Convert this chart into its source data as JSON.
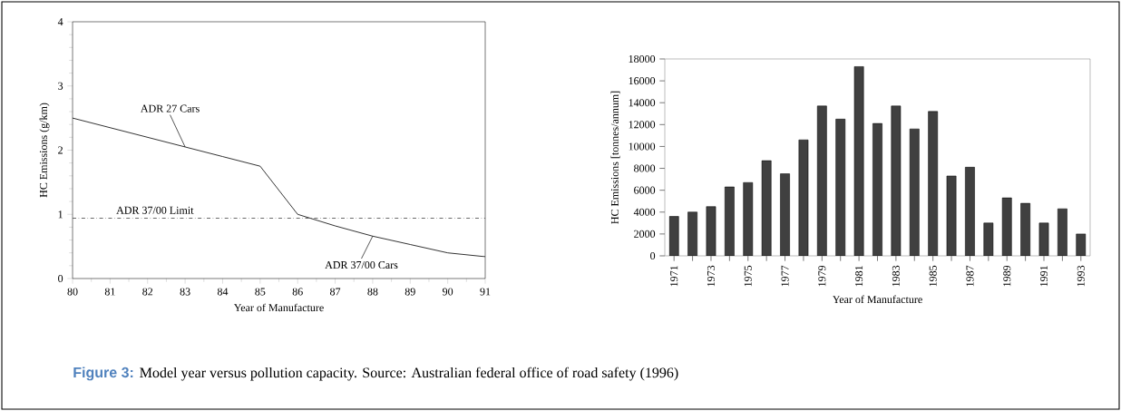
{
  "chart_data": [
    {
      "type": "line",
      "xlabel": "Year of Manufacture",
      "ylabel": "HC Emissions (g/km)",
      "x": [
        80,
        81,
        82,
        83,
        84,
        85,
        86,
        87,
        88,
        89,
        90,
        91
      ],
      "series": [
        {
          "color": "#000000",
          "values": [
            2.5,
            2.35,
            2.2,
            2.05,
            1.9,
            1.75,
            1.0,
            0.82,
            0.66,
            0.53,
            0.4,
            0.34
          ]
        }
      ],
      "xlim": [
        80,
        91
      ],
      "ylim": [
        0,
        4
      ],
      "xticks": [
        80,
        81,
        82,
        83,
        84,
        85,
        86,
        87,
        88,
        89,
        90,
        91
      ],
      "yticks": [
        0,
        1,
        2,
        3,
        4
      ],
      "ref_lines": [
        {
          "axis": "y",
          "value": 0.94,
          "label": "ADR 37/00 Limit",
          "color": "#444444",
          "line_style": "dashdot"
        }
      ],
      "annotations": [
        {
          "text": "ADR 27 Cars",
          "x": 83,
          "y": 2.05
        },
        {
          "text": "ADR 37/00 Cars",
          "x": 88,
          "y": 0.66
        },
        "Figure 3:",
        "Model year versus pollution capacity. Source: Australian federal office of road safety (1996)"
      ]
    },
    {
      "type": "bar",
      "xlabel": "Year of Manufacture",
      "ylabel": "HC Emissions [tonnes/annum]",
      "categories": [
        "1971",
        null,
        "1973",
        null,
        "1975",
        null,
        "1977",
        null,
        "1979",
        null,
        "1981",
        null,
        "1983",
        null,
        "1985",
        null,
        "1987",
        null,
        "1989",
        null,
        "1991",
        null,
        "1993"
      ],
      "values": [
        3600,
        4000,
        4500,
        6300,
        6700,
        8700,
        7500,
        10600,
        13700,
        12500,
        17300,
        12100,
        13700,
        11600,
        13200,
        7300,
        8100,
        3000,
        5300,
        4800,
        3000,
        4300,
        2000
      ],
      "color": "#404040",
      "ylim": [
        0,
        18000
      ],
      "yticks": [
        0,
        2000,
        4000,
        6000,
        8000,
        10000,
        12000,
        14000,
        16000,
        18000
      ]
    }
  ]
}
